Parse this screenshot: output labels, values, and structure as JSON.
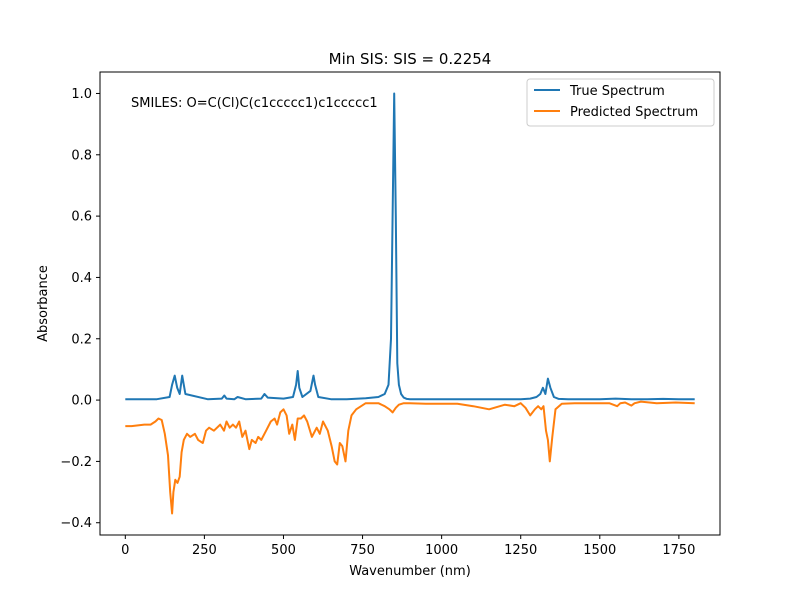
{
  "chart_data": {
    "type": "line",
    "title": "Min SIS: SIS = 0.2254",
    "xlabel": "Wavenumber (nm)",
    "ylabel": "Absorbance",
    "xlim": [
      -80,
      1880
    ],
    "ylim": [
      -0.44,
      1.07
    ],
    "xticks": [
      0,
      250,
      500,
      750,
      1000,
      1250,
      1500,
      1750
    ],
    "xtick_labels": [
      "0",
      "250",
      "500",
      "750",
      "1000",
      "1250",
      "1500",
      "1750"
    ],
    "yticks": [
      -0.4,
      -0.2,
      0.0,
      0.2,
      0.4,
      0.6,
      0.8,
      1.0
    ],
    "ytick_labels": [
      "−0.4",
      "−0.2",
      "0.0",
      "0.2",
      "0.4",
      "0.6",
      "0.8",
      "1.0"
    ],
    "grid": false,
    "legend_position": "top-right",
    "annotation": "SMILES: O=C(Cl)C(c1ccccc1)c1ccccc1",
    "series": [
      {
        "name": "True Spectrum",
        "color": "#1f77b4",
        "x": [
          0,
          100,
          140,
          148,
          156,
          164,
          172,
          180,
          190,
          260,
          305,
          313,
          320,
          345,
          355,
          380,
          430,
          440,
          450,
          500,
          530,
          540,
          545,
          550,
          560,
          585,
          595,
          600,
          610,
          650,
          700,
          760,
          800,
          820,
          832,
          840,
          845,
          850,
          855,
          860,
          865,
          872,
          880,
          890,
          900,
          950,
          1000,
          1050,
          1100,
          1150,
          1200,
          1250,
          1280,
          1300,
          1312,
          1320,
          1328,
          1336,
          1344,
          1355,
          1370,
          1400,
          1450,
          1500,
          1550,
          1600,
          1650,
          1700,
          1750,
          1800
        ],
        "y": [
          0.003,
          0.003,
          0.01,
          0.05,
          0.08,
          0.04,
          0.02,
          0.08,
          0.02,
          0.003,
          0.005,
          0.015,
          0.005,
          0.003,
          0.01,
          0.003,
          0.005,
          0.02,
          0.008,
          0.005,
          0.01,
          0.05,
          0.095,
          0.04,
          0.01,
          0.03,
          0.08,
          0.05,
          0.01,
          0.003,
          0.003,
          0.006,
          0.01,
          0.02,
          0.05,
          0.2,
          0.6,
          1.0,
          0.6,
          0.12,
          0.05,
          0.02,
          0.008,
          0.004,
          0.003,
          0.003,
          0.003,
          0.003,
          0.003,
          0.003,
          0.003,
          0.003,
          0.005,
          0.01,
          0.02,
          0.04,
          0.02,
          0.07,
          0.04,
          0.01,
          0.004,
          0.003,
          0.003,
          0.003,
          0.005,
          0.003,
          0.003,
          0.004,
          0.003,
          0.003
        ]
      },
      {
        "name": "Predicted Spectrum",
        "color": "#ff7f0e",
        "x": [
          0,
          20,
          60,
          80,
          95,
          105,
          115,
          125,
          135,
          142,
          148,
          152,
          158,
          165,
          172,
          178,
          185,
          195,
          205,
          220,
          230,
          245,
          255,
          265,
          280,
          300,
          312,
          320,
          330,
          340,
          350,
          360,
          370,
          380,
          392,
          400,
          412,
          420,
          430,
          445,
          460,
          472,
          480,
          490,
          500,
          510,
          518,
          528,
          536,
          545,
          555,
          565,
          575,
          590,
          605,
          615,
          625,
          640,
          652,
          662,
          670,
          678,
          686,
          696,
          705,
          715,
          730,
          760,
          780,
          800,
          820,
          835,
          845,
          855,
          865,
          880,
          900,
          950,
          1000,
          1050,
          1100,
          1150,
          1200,
          1230,
          1250,
          1265,
          1280,
          1295,
          1305,
          1315,
          1322,
          1330,
          1336,
          1342,
          1350,
          1360,
          1380,
          1420,
          1480,
          1530,
          1555,
          1565,
          1580,
          1600,
          1610,
          1630,
          1680,
          1740,
          1800
        ],
        "y": [
          -0.085,
          -0.085,
          -0.08,
          -0.08,
          -0.07,
          -0.06,
          -0.065,
          -0.11,
          -0.18,
          -0.3,
          -0.37,
          -0.3,
          -0.26,
          -0.27,
          -0.25,
          -0.17,
          -0.13,
          -0.11,
          -0.12,
          -0.11,
          -0.13,
          -0.14,
          -0.1,
          -0.09,
          -0.1,
          -0.08,
          -0.1,
          -0.07,
          -0.09,
          -0.08,
          -0.09,
          -0.07,
          -0.12,
          -0.1,
          -0.16,
          -0.13,
          -0.14,
          -0.12,
          -0.13,
          -0.1,
          -0.07,
          -0.06,
          -0.08,
          -0.04,
          -0.03,
          -0.05,
          -0.11,
          -0.08,
          -0.13,
          -0.06,
          -0.06,
          -0.05,
          -0.07,
          -0.12,
          -0.09,
          -0.11,
          -0.07,
          -0.1,
          -0.15,
          -0.2,
          -0.21,
          -0.14,
          -0.15,
          -0.2,
          -0.1,
          -0.05,
          -0.03,
          -0.01,
          -0.01,
          -0.01,
          -0.02,
          -0.03,
          -0.04,
          -0.025,
          -0.015,
          -0.01,
          -0.01,
          -0.012,
          -0.012,
          -0.012,
          -0.02,
          -0.03,
          -0.015,
          -0.02,
          -0.01,
          -0.025,
          -0.05,
          -0.03,
          -0.02,
          -0.03,
          -0.02,
          -0.1,
          -0.13,
          -0.2,
          -0.12,
          -0.03,
          -0.012,
          -0.01,
          -0.01,
          -0.01,
          -0.02,
          -0.01,
          -0.008,
          -0.018,
          -0.01,
          -0.005,
          -0.01,
          -0.008,
          -0.01
        ]
      }
    ]
  }
}
